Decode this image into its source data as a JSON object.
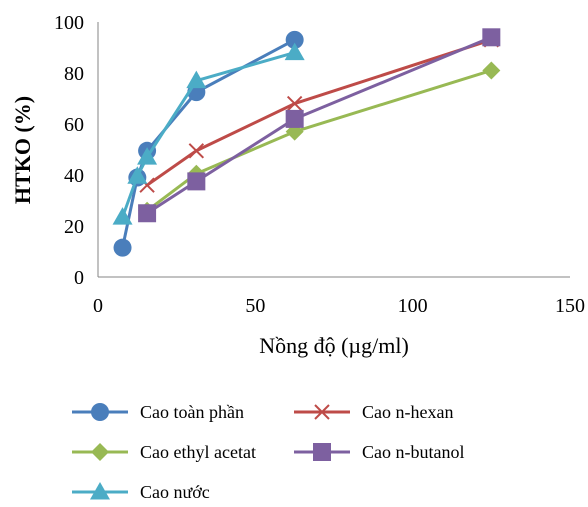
{
  "chart_data": {
    "type": "line",
    "title": "",
    "xlabel": "Nồng độ (µg/ml)",
    "ylabel": "HTKO (%)",
    "xlim": [
      0,
      150
    ],
    "ylim": [
      0,
      100
    ],
    "x_ticks": [
      0,
      50,
      100,
      150
    ],
    "y_ticks": [
      0,
      20,
      40,
      60,
      80,
      100
    ],
    "grid": false,
    "legend_position": "bottom",
    "series": [
      {
        "name": "Cao toàn phần",
        "color": "#4A7EBB",
        "marker": "circle",
        "x": [
          7.8,
          12.5,
          15.6,
          31.25,
          62.5
        ],
        "y": [
          11.5,
          39,
          49.5,
          72.5,
          93
        ]
      },
      {
        "name": "Cao n-hexan",
        "color": "#BE4B48",
        "marker": "x",
        "x": [
          15.6,
          31.25,
          62.5,
          125
        ],
        "y": [
          36,
          49.5,
          68,
          93
        ]
      },
      {
        "name": "Cao ethyl acetat",
        "color": "#98B954",
        "marker": "diamond",
        "x": [
          15.6,
          31.25,
          62.5,
          125
        ],
        "y": [
          26,
          40.5,
          57,
          81
        ]
      },
      {
        "name": "Cao n-butanol",
        "color": "#7D60A0",
        "marker": "square",
        "x": [
          15.6,
          31.25,
          62.5,
          125
        ],
        "y": [
          25,
          37.5,
          62,
          94
        ]
      },
      {
        "name": "Cao nước",
        "color": "#4BACC6",
        "marker": "triangle",
        "x": [
          7.8,
          12.5,
          15.6,
          31.25,
          62.5
        ],
        "y": [
          23.5,
          39.5,
          47,
          77,
          88
        ]
      }
    ]
  }
}
